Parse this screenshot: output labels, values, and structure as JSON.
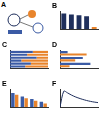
{
  "diagram": {
    "label": "A"
  },
  "chart_data": [
    {
      "type": "bar",
      "title": "B",
      "categories": [
        null,
        null,
        null,
        null,
        null
      ],
      "values": [
        88,
        82,
        78,
        72,
        12
      ],
      "colors": [
        "#1f2f5c",
        "#1f2f5c",
        "#1f2f5c",
        "#1f2f5c",
        "#e8842c"
      ],
      "ylim": [
        0,
        100
      ],
      "tick_labels": false,
      "grid": false
    },
    {
      "type": "bar",
      "title": "C",
      "orientation": "horizontal",
      "stacked": true,
      "categories": [
        null,
        null,
        null,
        null,
        null,
        null
      ],
      "series": [
        {
          "color": "#3b5ba5",
          "values": [
            60,
            45,
            70,
            30,
            55,
            40
          ]
        },
        {
          "color": "#e8842c",
          "values": [
            40,
            55,
            30,
            70,
            45,
            60
          ]
        }
      ],
      "xlim": [
        0,
        100
      ],
      "tick_labels": false,
      "grid": false
    },
    {
      "type": "bar",
      "title": "D",
      "orientation": "horizontal",
      "categories": [
        null,
        null,
        null
      ],
      "series": [
        {
          "color": "#3b5ba5",
          "values": [
            20,
            60,
            80
          ]
        },
        {
          "color": "#e8842c",
          "values": [
            70,
            40,
            25
          ]
        }
      ],
      "xlim": [
        0,
        100
      ],
      "tick_labels": false,
      "grid": false
    },
    {
      "type": "bar",
      "title": "E",
      "categories": [
        null,
        null,
        null,
        null
      ],
      "series": [
        {
          "color": "#3b5ba5",
          "values": [
            80,
            60,
            45,
            30
          ]
        },
        {
          "color": "#e8842c",
          "values": [
            70,
            50,
            35,
            20
          ]
        }
      ],
      "ylim": [
        0,
        100
      ],
      "tick_labels": false,
      "grid": false
    },
    {
      "type": "line",
      "title": "F",
      "x": [
        0,
        1,
        2,
        3,
        4,
        5,
        6,
        7,
        8,
        9,
        10
      ],
      "values": [
        0,
        90,
        80,
        68,
        58,
        50,
        43,
        37,
        32,
        28,
        25
      ],
      "color": "#1f2f5c",
      "xlim": [
        0,
        10
      ],
      "ylim": [
        0,
        100
      ],
      "tick_labels": false,
      "grid": false
    }
  ]
}
